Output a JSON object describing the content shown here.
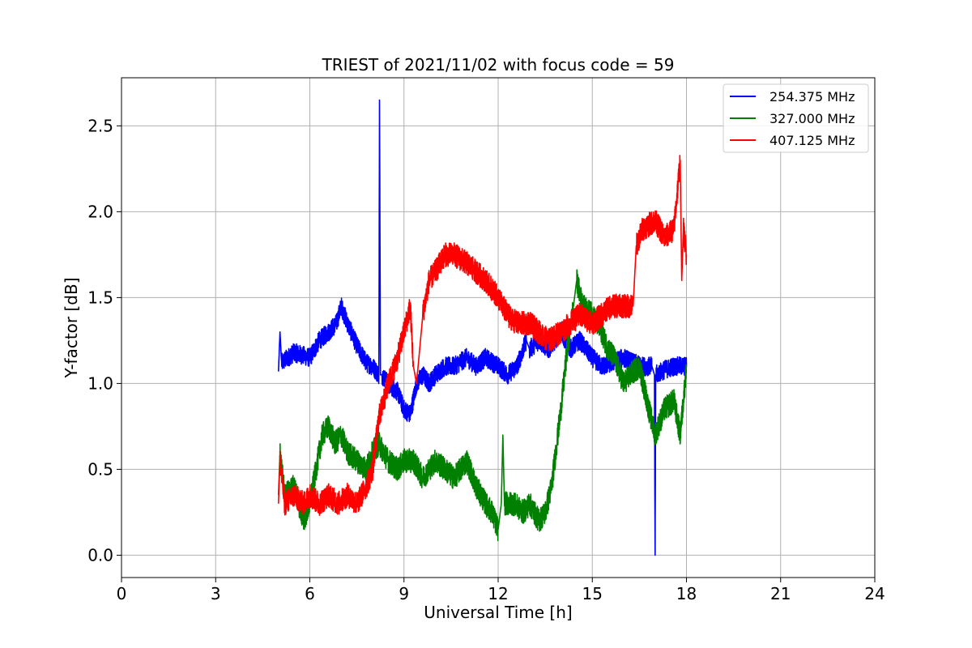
{
  "chart_data": {
    "type": "line",
    "title": "TRIEST of 2021/11/02 with focus code = 59",
    "xlabel": "Universal Time [h]",
    "ylabel": "Y-factor [dB]",
    "xlim": [
      0,
      24
    ],
    "ylim": [
      -0.13,
      2.78
    ],
    "x_ticks": [
      0,
      3,
      6,
      9,
      12,
      15,
      18,
      21,
      24
    ],
    "x_tick_labels": [
      "0",
      "3",
      "6",
      "9",
      "12",
      "15",
      "18",
      "21",
      "24"
    ],
    "y_ticks": [
      0.0,
      0.5,
      1.0,
      1.5,
      2.0,
      2.5
    ],
    "y_tick_labels": [
      "0.0",
      "0.5",
      "1.0",
      "1.5",
      "2.0",
      "2.5"
    ],
    "grid": true,
    "legend_position": "top-right",
    "series": [
      {
        "name": "254.375 MHz",
        "color": "#0000ff",
        "noise": 0.055,
        "x": [
          5.0,
          5.05,
          5.1,
          5.5,
          6.0,
          6.3,
          6.6,
          6.85,
          7.0,
          7.2,
          7.5,
          7.8,
          8.0,
          8.2,
          8.22,
          8.25,
          8.3,
          8.5,
          8.8,
          9.0,
          9.2,
          9.4,
          9.6,
          9.8,
          10.0,
          10.3,
          10.6,
          11.0,
          11.3,
          11.6,
          12.0,
          12.3,
          12.6,
          12.9,
          13.0,
          13.3,
          13.6,
          14.0,
          14.3,
          14.6,
          15.0,
          15.3,
          15.6,
          16.0,
          16.3,
          16.6,
          16.9,
          16.98,
          17.0,
          17.02,
          17.3,
          17.6,
          18.0
        ],
        "y": [
          1.07,
          1.3,
          1.12,
          1.18,
          1.15,
          1.25,
          1.3,
          1.35,
          1.45,
          1.35,
          1.22,
          1.12,
          1.1,
          1.05,
          2.65,
          1.05,
          1.05,
          1.0,
          0.95,
          0.85,
          0.82,
          1.0,
          1.05,
          1.0,
          1.05,
          1.1,
          1.1,
          1.15,
          1.1,
          1.15,
          1.1,
          1.05,
          1.1,
          1.25,
          1.2,
          1.25,
          1.2,
          1.3,
          1.2,
          1.25,
          1.15,
          1.1,
          1.12,
          1.15,
          1.12,
          1.1,
          1.1,
          1.05,
          0.0,
          1.05,
          1.08,
          1.1,
          1.1
        ]
      },
      {
        "name": "327.000 MHz",
        "color": "#008000",
        "noise": 0.07,
        "x": [
          5.0,
          5.05,
          5.2,
          5.5,
          5.8,
          6.0,
          6.2,
          6.4,
          6.6,
          6.8,
          7.0,
          7.2,
          7.5,
          7.8,
          8.0,
          8.2,
          8.5,
          8.8,
          9.0,
          9.3,
          9.6,
          10.0,
          10.3,
          10.6,
          11.0,
          11.3,
          11.6,
          11.8,
          12.0,
          12.1,
          12.15,
          12.2,
          12.5,
          12.8,
          13.0,
          13.3,
          13.5,
          13.7,
          14.0,
          14.2,
          14.4,
          14.5,
          14.7,
          15.0,
          15.3,
          15.5,
          15.7,
          16.0,
          16.2,
          16.5,
          16.8,
          17.0,
          17.3,
          17.6,
          17.8,
          18.0
        ],
        "y": [
          0.35,
          0.6,
          0.35,
          0.4,
          0.2,
          0.3,
          0.5,
          0.7,
          0.75,
          0.65,
          0.7,
          0.6,
          0.55,
          0.5,
          0.6,
          0.65,
          0.55,
          0.5,
          0.55,
          0.55,
          0.45,
          0.55,
          0.5,
          0.45,
          0.55,
          0.4,
          0.3,
          0.25,
          0.15,
          0.3,
          0.7,
          0.3,
          0.3,
          0.25,
          0.3,
          0.2,
          0.25,
          0.4,
          0.85,
          1.2,
          1.45,
          1.6,
          1.45,
          1.4,
          1.3,
          1.2,
          1.15,
          1.0,
          1.05,
          1.1,
          0.85,
          0.7,
          0.85,
          0.9,
          0.7,
          1.1
        ]
      },
      {
        "name": "407.125 MHz",
        "color": "#ff0000",
        "noise": 0.07,
        "x": [
          5.0,
          5.05,
          5.2,
          5.5,
          5.8,
          6.0,
          6.3,
          6.6,
          6.9,
          7.2,
          7.5,
          7.8,
          8.0,
          8.2,
          8.5,
          8.8,
          9.0,
          9.2,
          9.3,
          9.4,
          9.5,
          9.6,
          9.8,
          10.0,
          10.3,
          10.6,
          11.0,
          11.3,
          11.6,
          12.0,
          12.3,
          12.6,
          13.0,
          13.3,
          13.6,
          14.0,
          14.3,
          14.6,
          15.0,
          15.3,
          15.6,
          16.0,
          16.3,
          16.4,
          16.6,
          17.0,
          17.3,
          17.6,
          17.8,
          17.85,
          17.9,
          18.0
        ],
        "y": [
          0.3,
          0.55,
          0.3,
          0.35,
          0.3,
          0.35,
          0.3,
          0.35,
          0.3,
          0.35,
          0.3,
          0.4,
          0.5,
          0.8,
          1.0,
          1.15,
          1.3,
          1.45,
          1.1,
          1.0,
          1.2,
          1.4,
          1.6,
          1.65,
          1.75,
          1.75,
          1.7,
          1.65,
          1.6,
          1.5,
          1.4,
          1.35,
          1.35,
          1.3,
          1.25,
          1.3,
          1.35,
          1.4,
          1.35,
          1.4,
          1.45,
          1.45,
          1.45,
          1.8,
          1.9,
          1.95,
          1.85,
          1.9,
          2.3,
          1.6,
          1.9,
          1.75
        ]
      }
    ]
  }
}
